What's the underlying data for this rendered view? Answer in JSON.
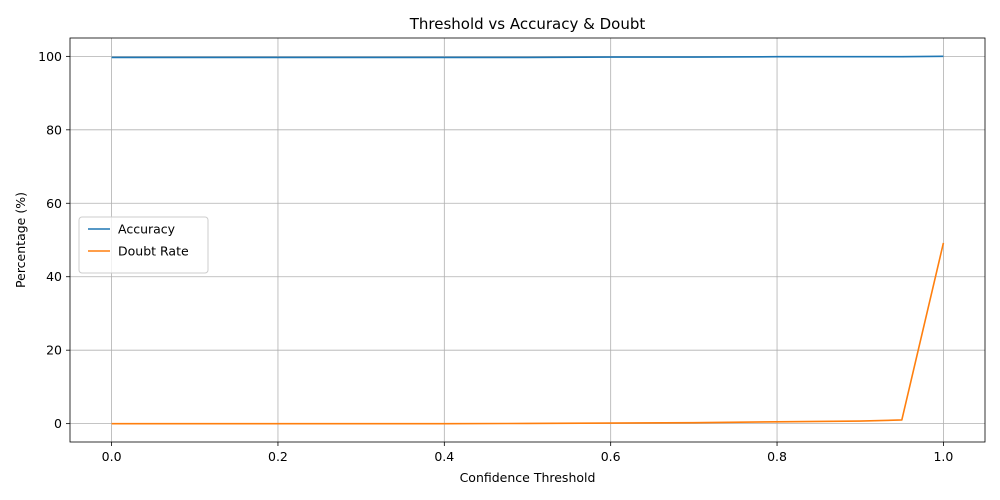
{
  "chart_data": {
    "type": "line",
    "title": "Threshold vs Accuracy & Doubt",
    "xlabel": "Confidence Threshold",
    "ylabel": "Percentage (%)",
    "xlim": [
      -0.05,
      1.05
    ],
    "ylim": [
      -5,
      105
    ],
    "xticks": [
      0.0,
      0.2,
      0.4,
      0.6,
      0.8,
      1.0
    ],
    "xtick_labels": [
      "0.0",
      "0.2",
      "0.4",
      "0.6",
      "0.8",
      "1.0"
    ],
    "yticks": [
      0,
      20,
      40,
      60,
      80,
      100
    ],
    "ytick_labels": [
      "0",
      "20",
      "40",
      "60",
      "80",
      "100"
    ],
    "grid": true,
    "legend_position": "center-left",
    "series": [
      {
        "name": "Accuracy",
        "color": "#1f77b4",
        "x": [
          0.0,
          0.1,
          0.2,
          0.3,
          0.4,
          0.5,
          0.6,
          0.7,
          0.8,
          0.9,
          0.95,
          1.0
        ],
        "y": [
          99.7,
          99.7,
          99.7,
          99.7,
          99.7,
          99.7,
          99.8,
          99.8,
          99.9,
          99.9,
          99.9,
          100.0
        ]
      },
      {
        "name": "Doubt Rate",
        "color": "#ff7f0e",
        "x": [
          0.0,
          0.1,
          0.2,
          0.3,
          0.4,
          0.5,
          0.6,
          0.7,
          0.8,
          0.9,
          0.95,
          1.0
        ],
        "y": [
          0.0,
          0.0,
          0.0,
          0.0,
          0.0,
          0.05,
          0.15,
          0.25,
          0.5,
          0.7,
          1.0,
          49.2
        ]
      }
    ]
  }
}
